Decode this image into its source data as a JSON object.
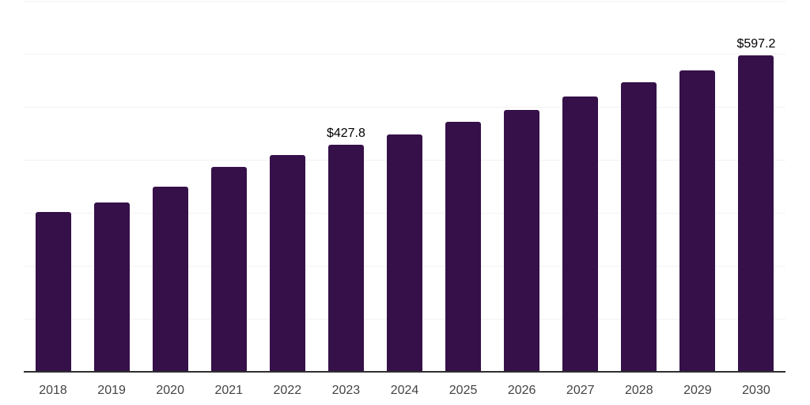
{
  "chart_data": {
    "type": "bar",
    "title": "",
    "xlabel": "",
    "ylabel": "",
    "categories": [
      "2018",
      "2019",
      "2020",
      "2021",
      "2022",
      "2023",
      "2024",
      "2025",
      "2026",
      "2027",
      "2028",
      "2029",
      "2030"
    ],
    "values": [
      302,
      319,
      349,
      387,
      409,
      427.8,
      448,
      471,
      494,
      519,
      546,
      569,
      597.2
    ],
    "data_labels": {
      "2023": "$427.8",
      "2030": "$597.2"
    },
    "ylim": [
      0,
      700
    ],
    "gridline_step": 100,
    "grid": true,
    "legend": false,
    "y_tick_labels_visible": false,
    "bar_color": "#351049",
    "axis_line_color": "#2f2f2f",
    "gridline_color": "#f3f2f4",
    "label_color": "#444444",
    "data_label_color": "#000000"
  }
}
